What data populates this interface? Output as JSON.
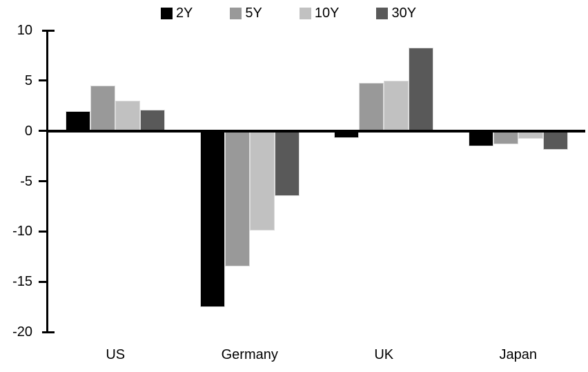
{
  "chart_data": {
    "type": "bar",
    "title": "",
    "categories": [
      "US",
      "Germany",
      "UK",
      "Japan"
    ],
    "series": [
      {
        "name": "2Y",
        "color": "#000000",
        "values": [
          2.0,
          -17.5,
          -0.7,
          -1.5
        ]
      },
      {
        "name": "5Y",
        "color": "#999999",
        "values": [
          4.5,
          -13.5,
          4.8,
          -1.3
        ]
      },
      {
        "name": "10Y",
        "color": "#c1c1c1",
        "values": [
          3.0,
          -9.9,
          5.0,
          -0.8
        ]
      },
      {
        "name": "30Y",
        "color": "#595959",
        "values": [
          2.1,
          -6.5,
          8.3,
          -1.9
        ]
      }
    ],
    "ylim": [
      -20,
      10
    ],
    "yticks": [
      10,
      5,
      0,
      -5,
      -10,
      -15,
      -20
    ],
    "xlabel": "",
    "ylabel": "",
    "grid": false,
    "legend_position": "top",
    "axis_color": "#000000",
    "background_color": "#ffffff"
  }
}
